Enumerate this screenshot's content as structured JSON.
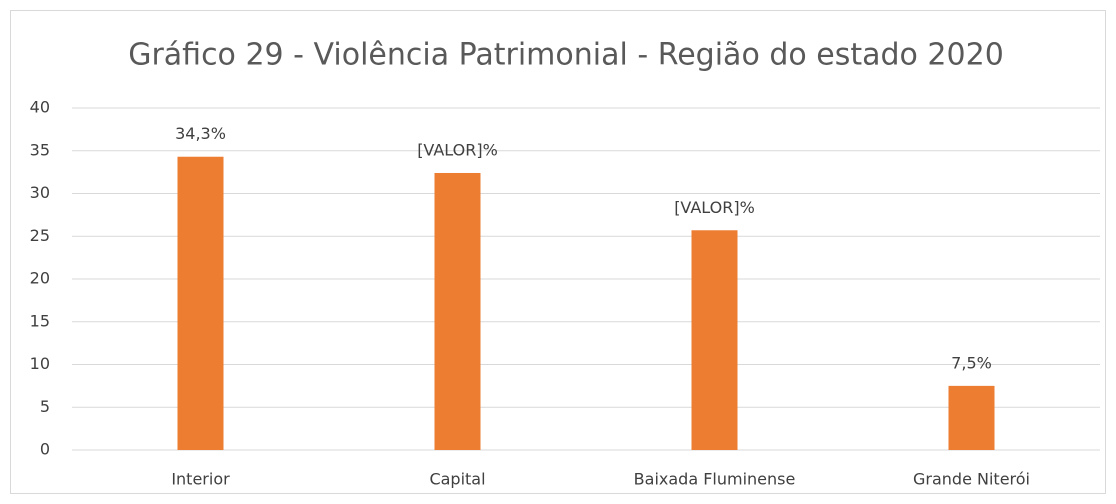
{
  "chart_data": {
    "type": "bar",
    "title": "Gráfico 29 - Violência Patrimonial - Região do estado 2020",
    "categories": [
      "Interior",
      "Capital",
      "Baixada Fluminense",
      "Grande Niterói"
    ],
    "values": [
      34.3,
      32.4,
      25.7,
      7.5
    ],
    "value_labels": [
      "34,3%",
      "[VALOR]%",
      "[VALOR]%",
      "7,5%"
    ],
    "color": "#ed7d31",
    "ylim": [
      0,
      40
    ],
    "yticks": [
      0,
      5,
      10,
      15,
      20,
      25,
      30,
      35,
      40
    ],
    "grid": true
  }
}
